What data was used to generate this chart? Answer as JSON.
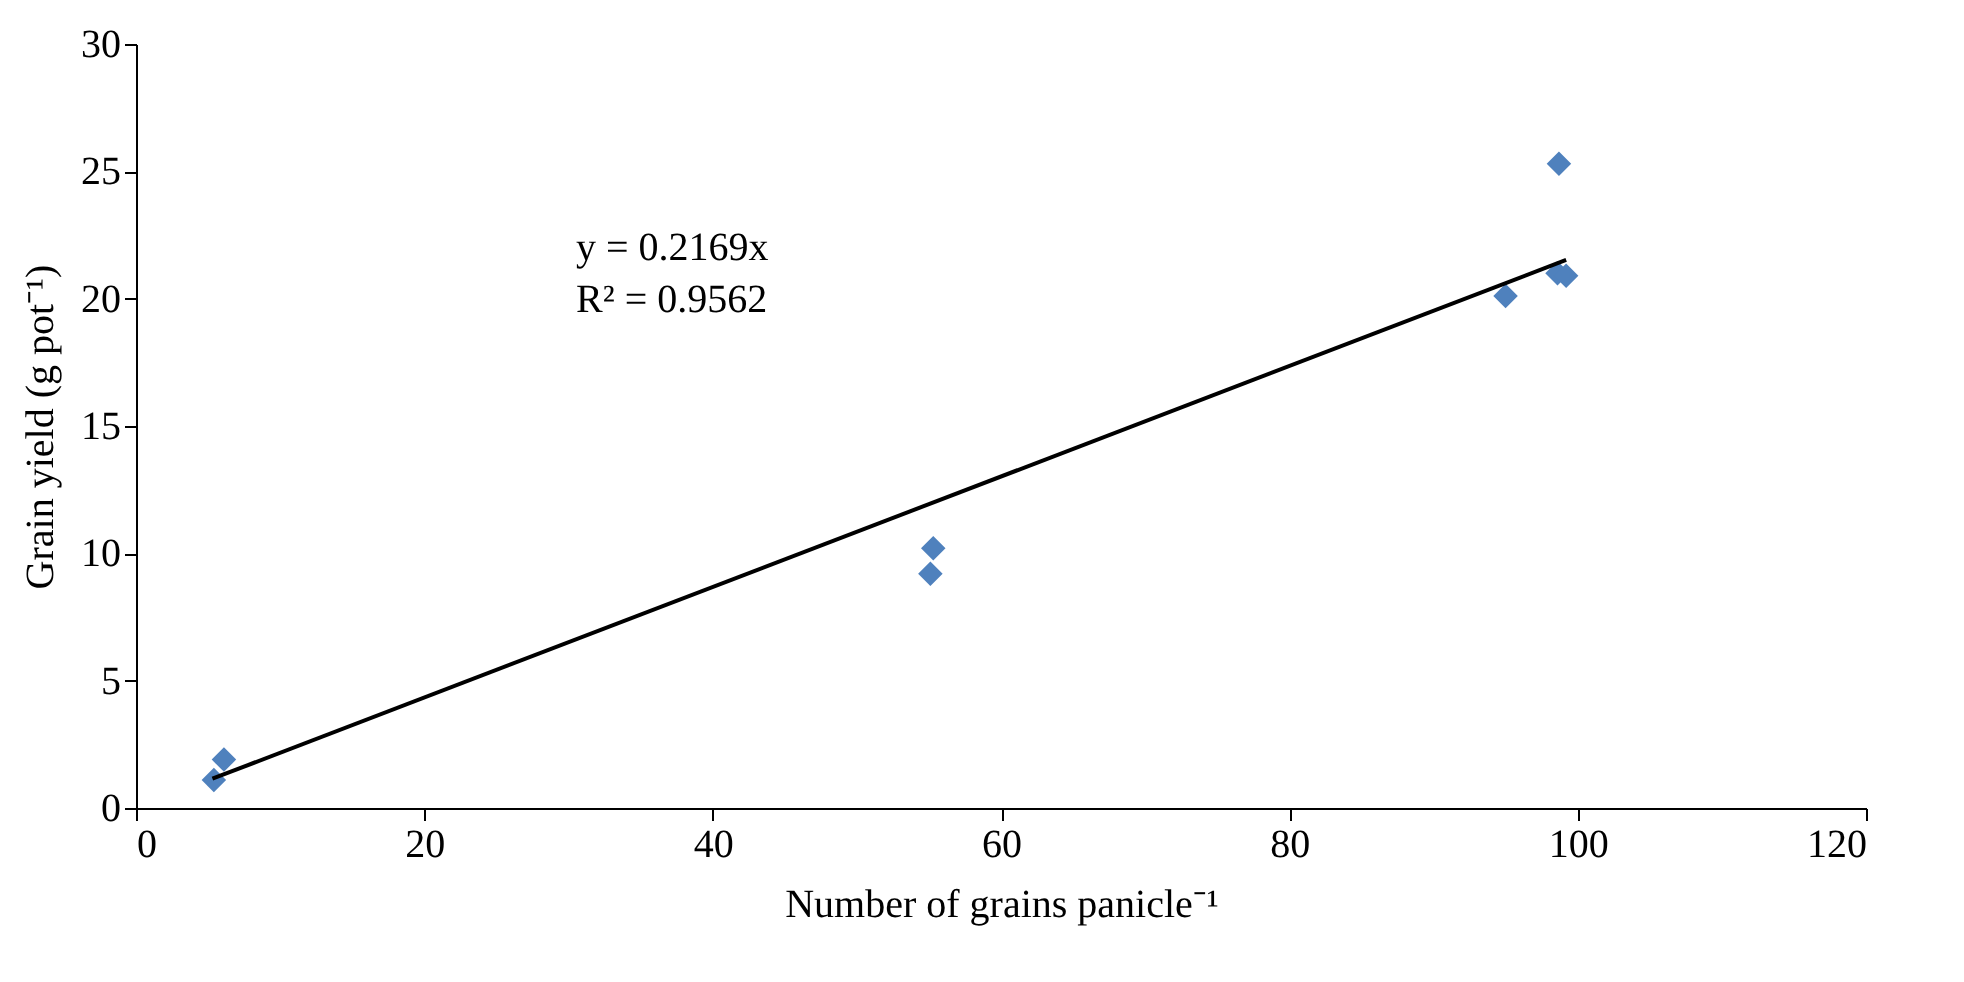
{
  "chart_data": {
    "type": "scatter",
    "xlabel": "Number of grains panicle⁻¹",
    "ylabel": "Grain yield (g pot⁻¹)",
    "xlim": [
      0,
      120
    ],
    "xticks": [
      0,
      20,
      40,
      60,
      80,
      100,
      120
    ],
    "ylim": [
      0,
      30
    ],
    "yticks": [
      0,
      5,
      10,
      15,
      20,
      25,
      30
    ],
    "grid": false,
    "series": [
      {
        "color": "#4f81bd",
        "marker": "diamond",
        "x": [
          5.4,
          6.1,
          55.1,
          55.3,
          95.0,
          98.6,
          99.2,
          98.7
        ],
        "values": [
          1.1,
          1.9,
          9.2,
          10.2,
          20.1,
          21.0,
          20.9,
          25.3
        ]
      },
      {
        "type": "line",
        "color": "#000000",
        "marker": "none",
        "x": [
          5.3,
          99.2
        ],
        "values": [
          1.15,
          21.52
        ]
      }
    ],
    "annotations": [
      "y = 0.2169x",
      "R² = 0.9562"
    ]
  }
}
